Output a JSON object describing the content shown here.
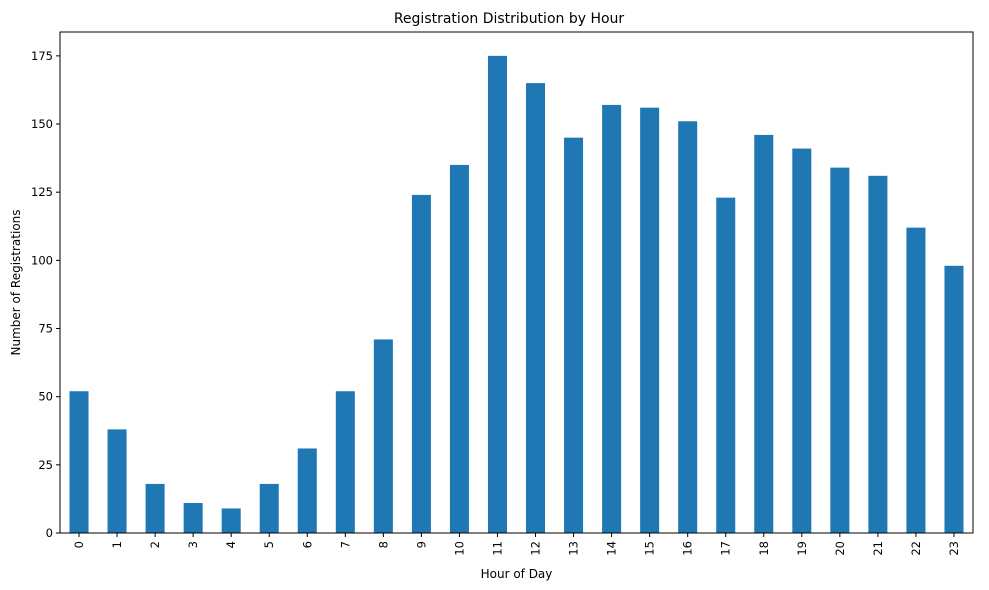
{
  "chart_data": {
    "type": "bar",
    "title": "Registration Distribution by Hour",
    "xlabel": "Hour of Day",
    "ylabel": "Number of Registrations",
    "categories": [
      "0",
      "1",
      "2",
      "3",
      "4",
      "5",
      "6",
      "7",
      "8",
      "9",
      "10",
      "11",
      "12",
      "13",
      "14",
      "15",
      "16",
      "17",
      "18",
      "19",
      "20",
      "21",
      "22",
      "23"
    ],
    "values": [
      52,
      38,
      18,
      11,
      9,
      18,
      31,
      52,
      71,
      124,
      135,
      175,
      165,
      145,
      157,
      156,
      151,
      123,
      146,
      141,
      134,
      131,
      112,
      98
    ],
    "ylim": [
      0,
      183.75
    ],
    "yticks": [
      0,
      25,
      50,
      75,
      100,
      125,
      150,
      175
    ],
    "x_tick_rotation": "vertical",
    "grid": false,
    "legend": "none",
    "bar_color": "#1f77b4"
  }
}
